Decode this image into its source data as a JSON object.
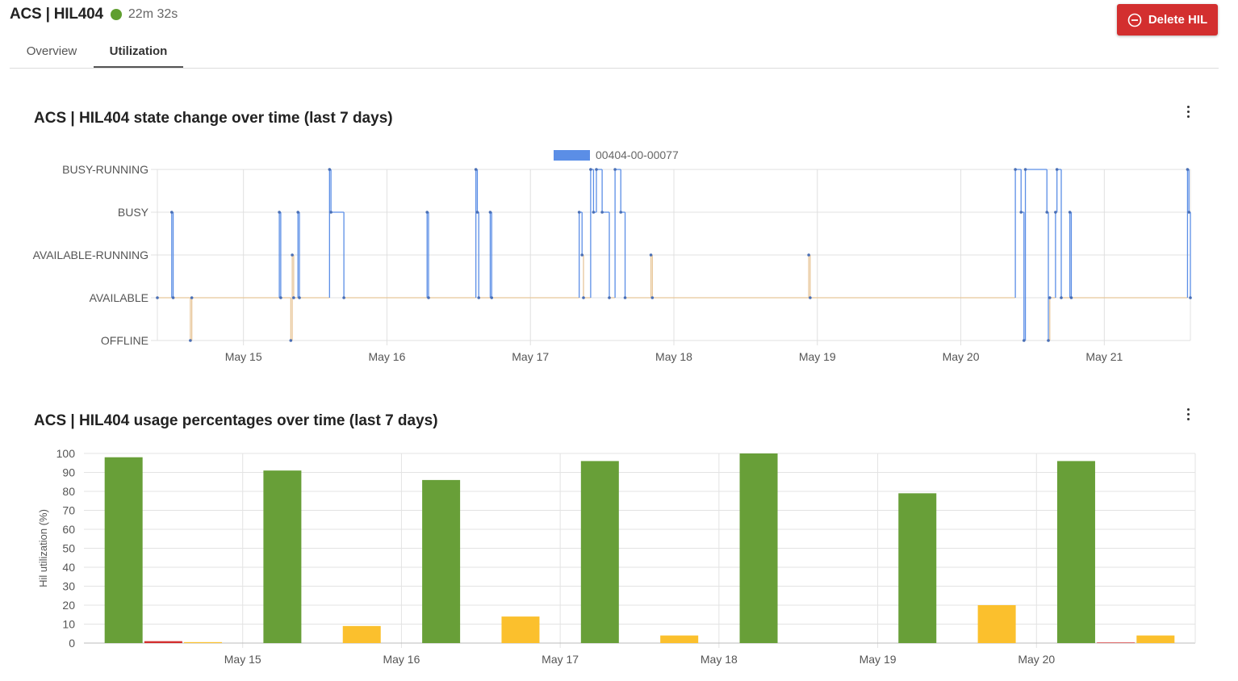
{
  "header": {
    "title": "ACS | HIL404",
    "uptime": "22m 32s",
    "status_color": "#5f9e2f",
    "delete_label": "Delete HIL",
    "delete_icon": "minus-circle-icon",
    "delete_color": "#d32f2f"
  },
  "tabs": [
    {
      "label": "Overview",
      "active": false
    },
    {
      "label": "Utilization",
      "active": true
    }
  ],
  "state_chart": {
    "title": "ACS | HIL404 state change over time (last 7 days)",
    "menu_icon": "kebab-menu-icon",
    "chart_data": {
      "type": "line",
      "title": "ACS | HIL404 state change over time (last 7 days)",
      "y_categories": [
        "OFFLINE",
        "AVAILABLE",
        "AVAILABLE-RUNNING",
        "BUSY",
        "BUSY-RUNNING"
      ],
      "x_ticks": [
        "May 15",
        "May 16",
        "May 17",
        "May 18",
        "May 19",
        "May 20",
        "May 21"
      ],
      "x_range": [
        14.4,
        21.6
      ],
      "grid": true,
      "legend_position": "top",
      "series": [
        {
          "name": "00404-00-00077",
          "color": "#5b8ee6",
          "alt_color": "#e8c79a",
          "steps": [
            [
              14.4,
              "AVAILABLE"
            ],
            [
              14.5,
              "BUSY"
            ],
            [
              14.51,
              "AVAILABLE"
            ],
            [
              14.63,
              "OFFLINE"
            ],
            [
              14.64,
              "AVAILABLE"
            ],
            [
              15.25,
              "BUSY"
            ],
            [
              15.26,
              "AVAILABLE"
            ],
            [
              15.33,
              "OFFLINE"
            ],
            [
              15.34,
              "AVAILABLE-RUNNING"
            ],
            [
              15.35,
              "AVAILABLE"
            ],
            [
              15.38,
              "BUSY"
            ],
            [
              15.39,
              "AVAILABLE"
            ],
            [
              15.6,
              "BUSY-RUNNING"
            ],
            [
              15.61,
              "BUSY"
            ],
            [
              15.7,
              "AVAILABLE"
            ],
            [
              16.28,
              "BUSY"
            ],
            [
              16.29,
              "AVAILABLE"
            ],
            [
              16.62,
              "BUSY-RUNNING"
            ],
            [
              16.63,
              "BUSY"
            ],
            [
              16.64,
              "AVAILABLE"
            ],
            [
              16.72,
              "BUSY"
            ],
            [
              16.73,
              "AVAILABLE"
            ],
            [
              17.34,
              "BUSY"
            ],
            [
              17.36,
              "AVAILABLE-RUNNING"
            ],
            [
              17.37,
              "AVAILABLE"
            ],
            [
              17.42,
              "BUSY-RUNNING"
            ],
            [
              17.44,
              "BUSY"
            ],
            [
              17.46,
              "BUSY-RUNNING"
            ],
            [
              17.5,
              "BUSY"
            ],
            [
              17.55,
              "AVAILABLE"
            ],
            [
              17.59,
              "BUSY-RUNNING"
            ],
            [
              17.63,
              "BUSY"
            ],
            [
              17.66,
              "AVAILABLE"
            ],
            [
              17.84,
              "AVAILABLE-RUNNING"
            ],
            [
              17.85,
              "AVAILABLE"
            ],
            [
              18.94,
              "AVAILABLE-RUNNING"
            ],
            [
              18.95,
              "AVAILABLE"
            ],
            [
              20.38,
              "BUSY-RUNNING"
            ],
            [
              20.42,
              "BUSY"
            ],
            [
              20.44,
              "OFFLINE"
            ],
            [
              20.45,
              "BUSY-RUNNING"
            ],
            [
              20.6,
              "BUSY"
            ],
            [
              20.61,
              "OFFLINE"
            ],
            [
              20.62,
              "AVAILABLE"
            ],
            [
              20.66,
              "BUSY"
            ],
            [
              20.67,
              "BUSY-RUNNING"
            ],
            [
              20.7,
              "AVAILABLE"
            ],
            [
              20.76,
              "BUSY"
            ],
            [
              20.77,
              "AVAILABLE"
            ],
            [
              21.58,
              "BUSY-RUNNING"
            ],
            [
              21.59,
              "BUSY"
            ],
            [
              21.6,
              "AVAILABLE"
            ]
          ]
        }
      ]
    }
  },
  "usage_chart": {
    "title": "ACS | HIL404 usage percentages over time (last 7 days)",
    "menu_icon": "kebab-menu-icon",
    "chart_data": {
      "type": "bar",
      "title": "ACS | HIL404 usage percentages over time (last 7 days)",
      "ylabel": "Hil utilization (%)",
      "ylim": [
        0,
        100
      ],
      "y_ticks": [
        0,
        10,
        20,
        30,
        40,
        50,
        60,
        70,
        80,
        90,
        100
      ],
      "grid": true,
      "x_tick_labels": [
        "May 15",
        "May 16",
        "May 17",
        "May 18",
        "May 19",
        "May 20"
      ],
      "bars": [
        {
          "day": 0,
          "offset": 0.25,
          "value": 98,
          "color": "#689f38"
        },
        {
          "day": 0,
          "offset": 0.5,
          "value": 1,
          "color": "#d32f2f"
        },
        {
          "day": 0,
          "offset": 0.75,
          "value": 0.5,
          "color": "#fbc02d"
        },
        {
          "day": 1,
          "offset": 0.25,
          "value": 91,
          "color": "#689f38"
        },
        {
          "day": 1,
          "offset": 0.5,
          "value": 0,
          "color": "#d32f2f"
        },
        {
          "day": 1,
          "offset": 0.75,
          "value": 9,
          "color": "#fbc02d"
        },
        {
          "day": 2,
          "offset": 0.25,
          "value": 86,
          "color": "#689f38"
        },
        {
          "day": 2,
          "offset": 0.5,
          "value": 0,
          "color": "#d32f2f"
        },
        {
          "day": 2,
          "offset": 0.75,
          "value": 14,
          "color": "#fbc02d"
        },
        {
          "day": 3,
          "offset": 0.25,
          "value": 96,
          "color": "#689f38"
        },
        {
          "day": 3,
          "offset": 0.5,
          "value": 0,
          "color": "#d32f2f"
        },
        {
          "day": 3,
          "offset": 0.75,
          "value": 4,
          "color": "#fbc02d"
        },
        {
          "day": 4,
          "offset": 0.25,
          "value": 100,
          "color": "#689f38"
        },
        {
          "day": 4,
          "offset": 0.5,
          "value": 0,
          "color": "#d32f2f"
        },
        {
          "day": 4,
          "offset": 0.75,
          "value": 0,
          "color": "#fbc02d"
        },
        {
          "day": 5,
          "offset": 0.25,
          "value": 79,
          "color": "#689f38"
        },
        {
          "day": 5,
          "offset": 0.5,
          "value": 0,
          "color": "#d32f2f"
        },
        {
          "day": 5,
          "offset": 0.75,
          "value": 20,
          "color": "#fbc02d"
        },
        {
          "day": 6,
          "offset": 0.25,
          "value": 96,
          "color": "#689f38"
        },
        {
          "day": 6,
          "offset": 0.5,
          "value": 0.3,
          "color": "#d32f2f"
        },
        {
          "day": 6,
          "offset": 0.75,
          "value": 4,
          "color": "#fbc02d"
        }
      ]
    }
  }
}
